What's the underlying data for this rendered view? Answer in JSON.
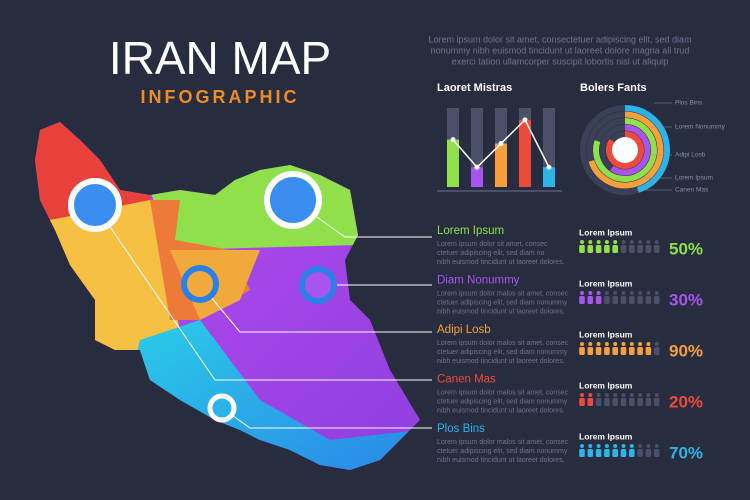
{
  "header": {
    "title": "IRAN MAP",
    "subtitle": "INFOGRAPHIC",
    "text": [
      "Lorem ipsum dolor sit amet, consectetuer adipiscing elit, sed diam",
      "nonummy nibh euismod tincidunt ut laoreet dolore magna ali trud",
      "exerci tation ullamcorper suscipit lobortis nisl ut aliquip"
    ]
  },
  "bar_chart": {
    "type": "bar",
    "title": "Laoret Mistras",
    "ylim": [
      0,
      100
    ],
    "values": [
      60,
      25,
      55,
      85,
      25
    ],
    "colors": [
      "#8fe04a",
      "#a855f0",
      "#f5a03a",
      "#ee4a3c",
      "#2ab4e8"
    ]
  },
  "radial_chart": {
    "type": "radial",
    "title": "Bolers Fants",
    "series": [
      {
        "name": "Plos Bins",
        "color": "#2ab4e8",
        "value": 45
      },
      {
        "name": "Lorem Nonummy",
        "color": "#f5a03a",
        "value": 70
      },
      {
        "name": "Adipi Losb",
        "color": "#8fe04a",
        "value": 80
      },
      {
        "name": "Lorem Ipsum",
        "color": "#a855f0",
        "value": 60
      },
      {
        "name": "Canen Mas",
        "color": "#ee4a3c",
        "value": 85
      }
    ]
  },
  "regions": [
    {
      "name": "Lorem Ipsum",
      "color": "#8fe04a",
      "text": [
        "Lorem ipsum dolor sit amet, consec",
        "ctetuer adipiscing elit, sed diam no",
        "nibh euismod tincidunt ut laoreet dolores."
      ]
    },
    {
      "name": "Diam Nonummy",
      "color": "#a855f0",
      "text": [
        "Lorem ipsum dolor malos sit amet, consec",
        "ctetuer adipiscing elit, sed diam nonummy",
        "nibh euismod tincidunt ut laoreet dolores."
      ]
    },
    {
      "name": "Adipi Losb",
      "color": "#f5a03a",
      "text": [
        "Lorem ipsum dolor malos sit amet, consec",
        "ctetuer adipiscing elit, sed diam nonummy",
        "nibh euismod tincidunt ut laoreet dolores."
      ]
    },
    {
      "name": "Canen Mas",
      "color": "#ee4a3c",
      "text": [
        "Lorem ipsum dolor malos sit amet, consec",
        "ctetuer adipiscing elit, sed diam nonummy",
        "nibh euismod tincidunt ut laoreet dolores."
      ]
    },
    {
      "name": "Plos Bins",
      "color": "#2ab4e8",
      "text": [
        "Lorem ipsum dolor malos sit amet, consec",
        "ctetuer adipiscing elit, sed diam nonummy",
        "nibh euismod tincidunt ut laoreet dolores."
      ]
    }
  ],
  "stats": [
    {
      "label": "Lorem Ipsum",
      "value": 50,
      "value_label": "50%",
      "color": "#8fe04a"
    },
    {
      "label": "Lorem Ipsum",
      "value": 30,
      "value_label": "30%",
      "color": "#a855f0"
    },
    {
      "label": "Lorem Ipsum",
      "value": 90,
      "value_label": "90%",
      "color": "#f5a03a"
    },
    {
      "label": "Lorem Ipsum",
      "value": 20,
      "value_label": "20%",
      "color": "#ee4a3c"
    },
    {
      "label": "Lorem Ipsum",
      "value": 70,
      "value_label": "70%",
      "color": "#2ab4e8"
    }
  ]
}
